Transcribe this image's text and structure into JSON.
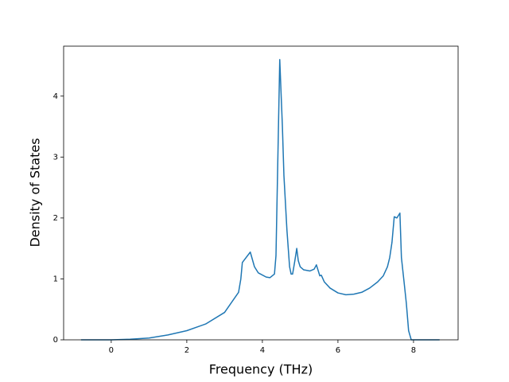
{
  "chart_data": {
    "type": "line",
    "xlabel": "Frequency (THz)",
    "ylabel": "Density of States",
    "x": [
      -0.8,
      0,
      0.5,
      1,
      1.5,
      2,
      2.5,
      3,
      3.37,
      3.43,
      3.47,
      3.68,
      3.79,
      3.89,
      4.1,
      4.2,
      4.32,
      4.36,
      4.46,
      4.53,
      4.57,
      4.61,
      4.65,
      4.72,
      4.76,
      4.8,
      4.86,
      4.91,
      4.95,
      5.0,
      5.09,
      5.26,
      5.37,
      5.43,
      5.52,
      5.56,
      5.64,
      5.79,
      6.0,
      6.21,
      6.42,
      6.63,
      6.84,
      7.05,
      7.2,
      7.31,
      7.37,
      7.43,
      7.49,
      7.56,
      7.64,
      7.68,
      7.75,
      7.81,
      7.87,
      7.94,
      8.69
    ],
    "series": [
      {
        "color": "#1f77b4",
        "values": [
          0,
          0,
          0.01,
          0.03,
          0.08,
          0.15,
          0.26,
          0.45,
          0.78,
          1.0,
          1.27,
          1.44,
          1.2,
          1.1,
          1.03,
          1.02,
          1.08,
          1.38,
          4.6,
          3.5,
          2.7,
          2.25,
          1.8,
          1.2,
          1.08,
          1.08,
          1.3,
          1.5,
          1.3,
          1.2,
          1.15,
          1.13,
          1.16,
          1.23,
          1.05,
          1.06,
          0.95,
          0.85,
          0.77,
          0.74,
          0.75,
          0.78,
          0.85,
          0.95,
          1.05,
          1.2,
          1.35,
          1.6,
          2.02,
          2.0,
          2.08,
          1.35,
          0.95,
          0.6,
          0.15,
          0,
          0
        ]
      }
    ],
    "xlim": [
      -1.26,
      9.18
    ],
    "ylim": [
      0,
      4.82
    ],
    "xticks": [
      0,
      2,
      4,
      6,
      8
    ],
    "yticks": [
      0,
      1,
      2,
      3,
      4
    ]
  }
}
